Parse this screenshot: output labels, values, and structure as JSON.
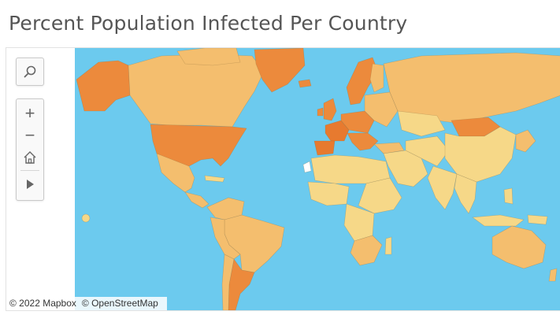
{
  "title": "Percent Population Infected Per Country",
  "colors": {
    "ocean": "#6ccaee",
    "ramp_low": "#f6d888",
    "ramp_mid": "#f4be6e",
    "ramp_high": "#ec8a3c",
    "ramp_top": "#e77a2f"
  },
  "controls": {
    "search_icon": "search-icon",
    "zoom_in_icon": "plus-icon",
    "zoom_out_icon": "minus-icon",
    "home_icon": "home-icon",
    "pan_icon": "play-icon"
  },
  "attribution": {
    "mapbox": "© 2022 Mapbox",
    "osm": "© OpenStreetMap"
  }
}
